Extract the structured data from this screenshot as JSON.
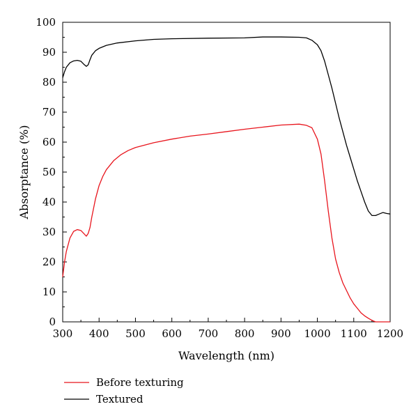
{
  "chart_data": {
    "type": "line",
    "xlabel": "Wavelength (nm)",
    "ylabel": "Absorptance (%)",
    "xlim": [
      300,
      1200
    ],
    "ylim": [
      0,
      100
    ],
    "x_ticks": [
      300,
      400,
      500,
      600,
      700,
      800,
      900,
      1000,
      1100,
      1200
    ],
    "y_ticks": [
      0,
      10,
      20,
      30,
      40,
      50,
      60,
      70,
      80,
      90,
      100
    ],
    "grid": false,
    "legend_position": "below",
    "series": [
      {
        "name": "Before texturing",
        "color": "#e8141c",
        "points": [
          [
            300,
            15
          ],
          [
            305,
            20
          ],
          [
            310,
            23.5
          ],
          [
            320,
            28
          ],
          [
            330,
            30.2
          ],
          [
            340,
            30.8
          ],
          [
            350,
            30.5
          ],
          [
            358,
            29.5
          ],
          [
            365,
            28.6
          ],
          [
            370,
            29.5
          ],
          [
            375,
            31.5
          ],
          [
            380,
            35
          ],
          [
            390,
            41
          ],
          [
            400,
            45.5
          ],
          [
            410,
            48.5
          ],
          [
            420,
            50.8
          ],
          [
            440,
            53.8
          ],
          [
            460,
            55.8
          ],
          [
            480,
            57.2
          ],
          [
            500,
            58.2
          ],
          [
            550,
            59.8
          ],
          [
            600,
            61
          ],
          [
            650,
            62
          ],
          [
            700,
            62.7
          ],
          [
            750,
            63.5
          ],
          [
            800,
            64.3
          ],
          [
            850,
            65
          ],
          [
            900,
            65.7
          ],
          [
            950,
            66
          ],
          [
            970,
            65.6
          ],
          [
            985,
            64.8
          ],
          [
            1000,
            61
          ],
          [
            1010,
            56
          ],
          [
            1020,
            47
          ],
          [
            1030,
            37
          ],
          [
            1040,
            28
          ],
          [
            1050,
            21
          ],
          [
            1060,
            16.5
          ],
          [
            1070,
            13
          ],
          [
            1080,
            10.5
          ],
          [
            1090,
            8
          ],
          [
            1100,
            6
          ],
          [
            1110,
            4.5
          ],
          [
            1120,
            3
          ],
          [
            1130,
            2
          ],
          [
            1140,
            1.2
          ],
          [
            1150,
            0.5
          ],
          [
            1160,
            0
          ],
          [
            1200,
            0
          ]
        ]
      },
      {
        "name": "Textured",
        "color": "#000000",
        "points": [
          [
            300,
            81.5
          ],
          [
            305,
            83.5
          ],
          [
            310,
            85
          ],
          [
            320,
            86.5
          ],
          [
            330,
            87.1
          ],
          [
            340,
            87.3
          ],
          [
            350,
            87
          ],
          [
            358,
            86
          ],
          [
            365,
            85.3
          ],
          [
            370,
            85.8
          ],
          [
            375,
            87.5
          ],
          [
            380,
            89
          ],
          [
            390,
            90.5
          ],
          [
            400,
            91.3
          ],
          [
            420,
            92.3
          ],
          [
            450,
            93.1
          ],
          [
            500,
            93.8
          ],
          [
            550,
            94.3
          ],
          [
            600,
            94.5
          ],
          [
            700,
            94.7
          ],
          [
            800,
            94.8
          ],
          [
            850,
            95.1
          ],
          [
            900,
            95.1
          ],
          [
            950,
            95
          ],
          [
            970,
            94.8
          ],
          [
            985,
            94
          ],
          [
            1000,
            92.5
          ],
          [
            1010,
            90.5
          ],
          [
            1020,
            87
          ],
          [
            1030,
            82.5
          ],
          [
            1040,
            78
          ],
          [
            1050,
            73
          ],
          [
            1060,
            68
          ],
          [
            1070,
            63.5
          ],
          [
            1080,
            59
          ],
          [
            1090,
            55
          ],
          [
            1100,
            51
          ],
          [
            1110,
            47
          ],
          [
            1120,
            43.5
          ],
          [
            1130,
            40
          ],
          [
            1140,
            37
          ],
          [
            1150,
            35.5
          ],
          [
            1160,
            35.5
          ],
          [
            1170,
            36
          ],
          [
            1180,
            36.5
          ],
          [
            1190,
            36.2
          ],
          [
            1200,
            36
          ]
        ]
      }
    ]
  }
}
